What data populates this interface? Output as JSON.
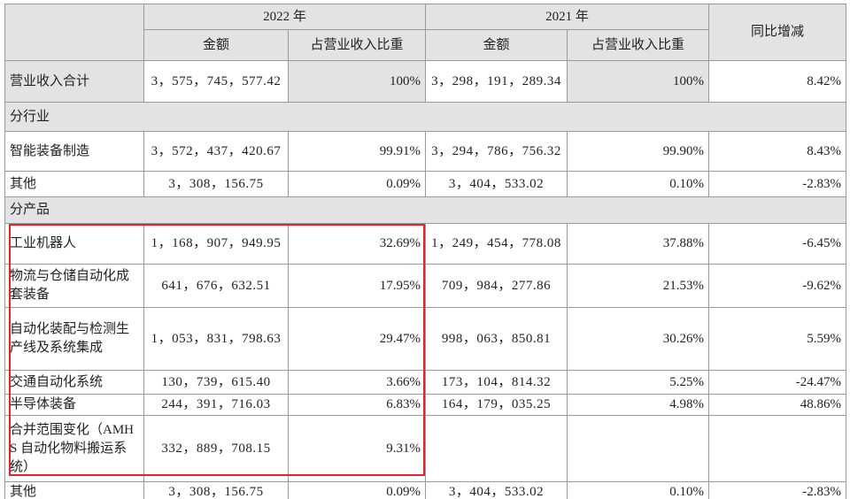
{
  "table": {
    "header": {
      "year_2022": "2022 年",
      "year_2021": "2021 年",
      "yoy": "同比增减",
      "amount_2022": "金额",
      "share_2022": "占营业收入比重",
      "amount_2021": "金额",
      "share_2021": "占营业收入比重"
    },
    "rows": [
      {
        "label": "营业收入合计",
        "amount_2022": "3，575，745，577.42",
        "share_2022": "100%",
        "amount_2021": "3，298，191，289.34",
        "share_2021": "100%",
        "yoy": "8.42%"
      },
      {
        "section": "分行业"
      },
      {
        "label": "智能装备制造",
        "amount_2022": "3，572，437，420.67",
        "share_2022": "99.91%",
        "amount_2021": "3，294，786，756.32",
        "share_2021": "99.90%",
        "yoy": "8.43%"
      },
      {
        "label": "其他",
        "amount_2022": "3，308，156.75",
        "share_2022": "0.09%",
        "amount_2021": "3，404，533.02",
        "share_2021": "0.10%",
        "yoy": "-2.83%"
      },
      {
        "section": "分产品"
      },
      {
        "label": "工业机器人",
        "amount_2022": "1，168，907，949.95",
        "share_2022": "32.69%",
        "amount_2021": "1，249，454，778.08",
        "share_2021": "37.88%",
        "yoy": "-6.45%"
      },
      {
        "label": "物流与仓储自动化成套装备",
        "amount_2022": "641，676，632.51",
        "share_2022": "17.95%",
        "amount_2021": "709，984，277.86",
        "share_2021": "21.53%",
        "yoy": "-9.62%"
      },
      {
        "label": "自动化装配与检测生产线及系统集成",
        "amount_2022": "1，053，831，798.63",
        "share_2022": "29.47%",
        "amount_2021": "998，063，850.81",
        "share_2021": "30.26%",
        "yoy": "5.59%"
      },
      {
        "label": "交通自动化系统",
        "amount_2022": "130，739，615.40",
        "share_2022": "3.66%",
        "amount_2021": "173，104，814.32",
        "share_2021": "5.25%",
        "yoy": "-24.47%"
      },
      {
        "label": "半导体装备",
        "amount_2022": "244，391，716.03",
        "share_2022": "6.83%",
        "amount_2021": "164，179，035.25",
        "share_2021": "4.98%",
        "yoy": "48.86%"
      },
      {
        "label": "合并范围变化（AMHS 自动化物料搬运系统）",
        "amount_2022": "332，889，708.15",
        "share_2022": "9.31%"
      },
      {
        "label": "其他",
        "amount_2022": "3，308，156.75",
        "share_2022": "0.09%",
        "amount_2021": "3，404，533.02",
        "share_2021": "0.10%",
        "yoy": "-2.83%"
      }
    ]
  }
}
